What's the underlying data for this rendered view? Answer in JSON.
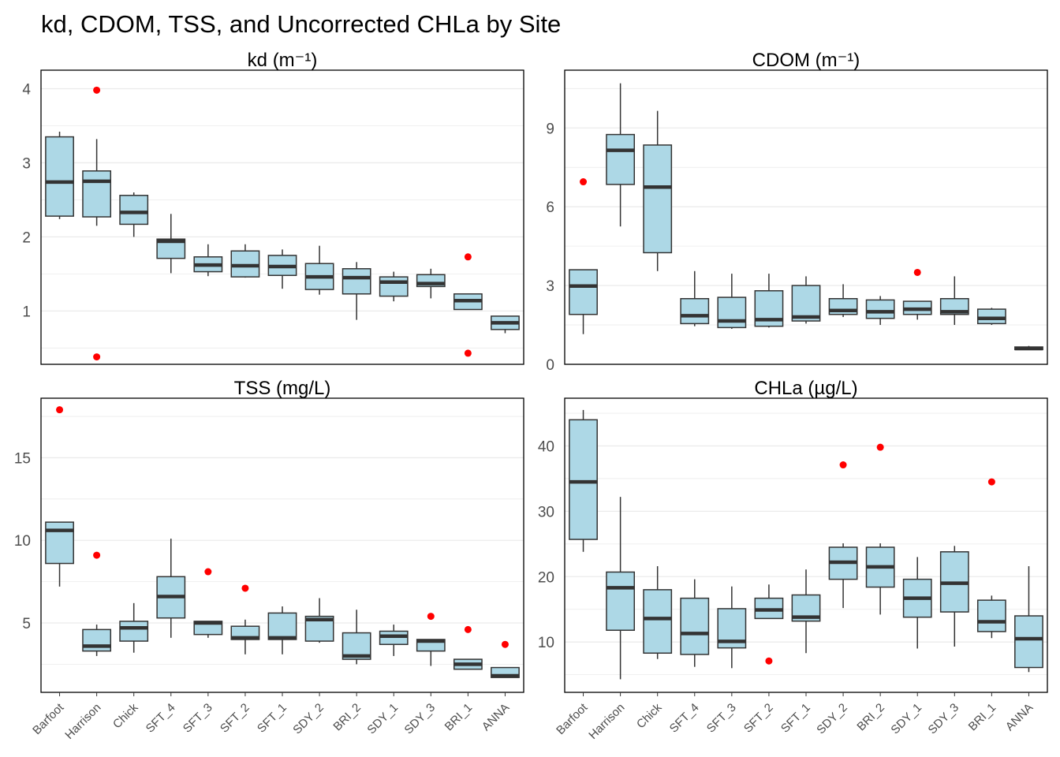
{
  "title": "kd, CDOM, TSS, and Uncorrected CHLa by Site",
  "colors": {
    "box_fill": "#add8e6",
    "box_line": "#333333",
    "median": "#333333",
    "outlier": "#ff0000",
    "grid": "#ebebeb",
    "panel_border": "#000000"
  },
  "chart_data": [
    {
      "type": "box",
      "title": "kd (m⁻¹)",
      "categories": [
        "Barfoot",
        "Harrison",
        "Chick",
        "SFT_4",
        "SFT_3",
        "SFT_2",
        "SFT_1",
        "SDY_2",
        "BRI_2",
        "SDY_1",
        "SDY_3",
        "BRI_1",
        "ANNA"
      ],
      "ylim": [
        0.28,
        4.25
      ],
      "yticks": [
        1,
        2,
        3,
        4
      ],
      "boxes": [
        {
          "lw": 2.24,
          "q1": 2.28,
          "med": 2.74,
          "q3": 3.35,
          "uw": 3.42,
          "out": []
        },
        {
          "lw": 2.15,
          "q1": 2.27,
          "med": 2.75,
          "q3": 2.89,
          "uw": 3.32,
          "out": [
            3.98,
            0.38
          ]
        },
        {
          "lw": 2.0,
          "q1": 2.17,
          "med": 2.33,
          "q3": 2.56,
          "uw": 2.6,
          "out": []
        },
        {
          "lw": 1.51,
          "q1": 1.71,
          "med": 1.94,
          "q3": 1.97,
          "uw": 2.31,
          "out": []
        },
        {
          "lw": 1.47,
          "q1": 1.53,
          "med": 1.62,
          "q3": 1.73,
          "uw": 1.9,
          "out": []
        },
        {
          "lw": 1.45,
          "q1": 1.46,
          "med": 1.61,
          "q3": 1.81,
          "uw": 1.9,
          "out": []
        },
        {
          "lw": 1.3,
          "q1": 1.48,
          "med": 1.6,
          "q3": 1.75,
          "uw": 1.83,
          "out": []
        },
        {
          "lw": 1.22,
          "q1": 1.29,
          "med": 1.46,
          "q3": 1.64,
          "uw": 1.88,
          "out": []
        },
        {
          "lw": 0.88,
          "q1": 1.23,
          "med": 1.45,
          "q3": 1.57,
          "uw": 1.66,
          "out": []
        },
        {
          "lw": 1.13,
          "q1": 1.2,
          "med": 1.39,
          "q3": 1.46,
          "uw": 1.53,
          "out": []
        },
        {
          "lw": 1.17,
          "q1": 1.33,
          "med": 1.37,
          "q3": 1.49,
          "uw": 1.57,
          "out": []
        },
        {
          "lw": 1.02,
          "q1": 1.02,
          "med": 1.14,
          "q3": 1.23,
          "uw": 1.23,
          "out": [
            1.73,
            0.43
          ]
        },
        {
          "lw": 0.7,
          "q1": 0.75,
          "med": 0.84,
          "q3": 0.93,
          "uw": 0.93,
          "out": []
        }
      ]
    },
    {
      "type": "box",
      "title": "CDOM (m⁻¹)",
      "categories": [
        "Barfoot",
        "Harrison",
        "Chick",
        "SFT_4",
        "SFT_3",
        "SFT_2",
        "SFT_1",
        "SDY_2",
        "BRI_2",
        "SDY_1",
        "SDY_3",
        "BRI_1",
        "ANNA"
      ],
      "ylim": [
        0,
        11.2
      ],
      "yticks": [
        0,
        3,
        6,
        9
      ],
      "boxes": [
        {
          "lw": 1.15,
          "q1": 1.9,
          "med": 2.98,
          "q3": 3.6,
          "uw": 3.6,
          "out": [
            6.95
          ]
        },
        {
          "lw": 5.25,
          "q1": 6.85,
          "med": 8.15,
          "q3": 8.75,
          "uw": 10.7,
          "out": []
        },
        {
          "lw": 3.55,
          "q1": 4.25,
          "med": 6.75,
          "q3": 8.35,
          "uw": 9.65,
          "out": []
        },
        {
          "lw": 1.45,
          "q1": 1.55,
          "med": 1.85,
          "q3": 2.5,
          "uw": 3.55,
          "out": []
        },
        {
          "lw": 1.35,
          "q1": 1.4,
          "med": 1.65,
          "q3": 2.55,
          "uw": 3.45,
          "out": []
        },
        {
          "lw": 1.4,
          "q1": 1.45,
          "med": 1.7,
          "q3": 2.8,
          "uw": 3.45,
          "out": []
        },
        {
          "lw": 1.55,
          "q1": 1.65,
          "med": 1.8,
          "q3": 3.0,
          "uw": 3.35,
          "out": []
        },
        {
          "lw": 1.8,
          "q1": 1.9,
          "med": 2.05,
          "q3": 2.5,
          "uw": 3.05,
          "out": []
        },
        {
          "lw": 1.5,
          "q1": 1.75,
          "med": 2.0,
          "q3": 2.45,
          "uw": 2.6,
          "out": []
        },
        {
          "lw": 1.7,
          "q1": 1.9,
          "med": 2.1,
          "q3": 2.4,
          "uw": 2.4,
          "out": [
            3.5
          ]
        },
        {
          "lw": 1.5,
          "q1": 1.9,
          "med": 2.0,
          "q3": 2.5,
          "uw": 3.35,
          "out": []
        },
        {
          "lw": 1.5,
          "q1": 1.55,
          "med": 1.75,
          "q3": 2.1,
          "uw": 2.15,
          "out": []
        },
        {
          "lw": 0.55,
          "q1": 0.56,
          "med": 0.6,
          "q3": 0.66,
          "uw": 0.7,
          "out": []
        }
      ]
    },
    {
      "type": "box",
      "title": "TSS (mg/L)",
      "categories": [
        "Barfoot",
        "Harrison",
        "Chick",
        "SFT_4",
        "SFT_3",
        "SFT_2",
        "SFT_1",
        "SDY_2",
        "BRI_2",
        "SDY_1",
        "SDY_3",
        "BRI_1",
        "ANNA"
      ],
      "ylim": [
        0.8,
        18.6
      ],
      "yticks": [
        5,
        10,
        15
      ],
      "boxes": [
        {
          "lw": 7.2,
          "q1": 8.6,
          "med": 10.6,
          "q3": 11.1,
          "uw": 11.1,
          "out": [
            17.9
          ]
        },
        {
          "lw": 3.0,
          "q1": 3.3,
          "med": 3.6,
          "q3": 4.6,
          "uw": 4.9,
          "out": [
            9.1
          ]
        },
        {
          "lw": 3.2,
          "q1": 3.9,
          "med": 4.7,
          "q3": 5.1,
          "uw": 6.2,
          "out": []
        },
        {
          "lw": 4.1,
          "q1": 5.3,
          "med": 6.6,
          "q3": 7.8,
          "uw": 10.1,
          "out": []
        },
        {
          "lw": 4.1,
          "q1": 4.3,
          "med": 5.0,
          "q3": 5.1,
          "uw": 5.1,
          "out": [
            8.1
          ]
        },
        {
          "lw": 3.1,
          "q1": 4.0,
          "med": 4.1,
          "q3": 4.8,
          "uw": 5.2,
          "out": [
            7.1
          ]
        },
        {
          "lw": 3.1,
          "q1": 4.0,
          "med": 4.1,
          "q3": 5.6,
          "uw": 6.0,
          "out": []
        },
        {
          "lw": 3.8,
          "q1": 3.9,
          "med": 5.2,
          "q3": 5.4,
          "uw": 6.5,
          "out": []
        },
        {
          "lw": 2.5,
          "q1": 2.8,
          "med": 3.0,
          "q3": 4.4,
          "uw": 5.8,
          "out": []
        },
        {
          "lw": 3.0,
          "q1": 3.7,
          "med": 4.2,
          "q3": 4.5,
          "uw": 4.9,
          "out": []
        },
        {
          "lw": 2.4,
          "q1": 3.3,
          "med": 3.9,
          "q3": 4.0,
          "uw": 4.0,
          "out": [
            5.4
          ]
        },
        {
          "lw": 2.2,
          "q1": 2.2,
          "med": 2.5,
          "q3": 2.8,
          "uw": 2.8,
          "out": [
            4.6
          ]
        },
        {
          "lw": 1.7,
          "q1": 1.7,
          "med": 1.8,
          "q3": 2.3,
          "uw": 2.3,
          "out": [
            3.7
          ]
        }
      ]
    },
    {
      "type": "box",
      "title": "CHLa (µg/L)",
      "categories": [
        "Barfoot",
        "Harrison",
        "Chick",
        "SFT_4",
        "SFT_3",
        "SFT_2",
        "SFT_1",
        "SDY_2",
        "BRI_2",
        "SDY_1",
        "SDY_3",
        "BRI_1",
        "ANNA"
      ],
      "ylim": [
        2.3,
        47.3
      ],
      "yticks": [
        10,
        20,
        30,
        40
      ],
      "boxes": [
        {
          "lw": 23.8,
          "q1": 25.7,
          "med": 34.5,
          "q3": 44.0,
          "uw": 45.5,
          "out": []
        },
        {
          "lw": 4.3,
          "q1": 11.8,
          "med": 18.3,
          "q3": 20.7,
          "uw": 32.2,
          "out": []
        },
        {
          "lw": 7.4,
          "q1": 8.3,
          "med": 13.6,
          "q3": 18.0,
          "uw": 21.6,
          "out": []
        },
        {
          "lw": 6.2,
          "q1": 8.1,
          "med": 11.3,
          "q3": 16.7,
          "uw": 19.6,
          "out": []
        },
        {
          "lw": 6.0,
          "q1": 9.1,
          "med": 10.1,
          "q3": 15.1,
          "uw": 18.5,
          "out": []
        },
        {
          "lw": 13.6,
          "q1": 13.6,
          "med": 14.9,
          "q3": 16.7,
          "uw": 18.8,
          "out": [
            7.1
          ]
        },
        {
          "lw": 8.3,
          "q1": 13.2,
          "med": 13.8,
          "q3": 17.2,
          "uw": 21.1,
          "out": []
        },
        {
          "lw": 15.2,
          "q1": 19.6,
          "med": 22.2,
          "q3": 24.5,
          "uw": 25.1,
          "out": [
            37.1
          ]
        },
        {
          "lw": 14.2,
          "q1": 18.4,
          "med": 21.5,
          "q3": 24.5,
          "uw": 25.1,
          "out": [
            39.8
          ]
        },
        {
          "lw": 9.0,
          "q1": 13.8,
          "med": 16.7,
          "q3": 19.6,
          "uw": 23.0,
          "out": []
        },
        {
          "lw": 9.3,
          "q1": 14.6,
          "med": 19.0,
          "q3": 23.8,
          "uw": 24.7,
          "out": []
        },
        {
          "lw": 10.6,
          "q1": 11.6,
          "med": 13.1,
          "q3": 16.4,
          "uw": 17.1,
          "out": [
            34.5
          ]
        },
        {
          "lw": 5.4,
          "q1": 6.1,
          "med": 10.5,
          "q3": 14.0,
          "uw": 21.6,
          "out": []
        }
      ]
    }
  ]
}
